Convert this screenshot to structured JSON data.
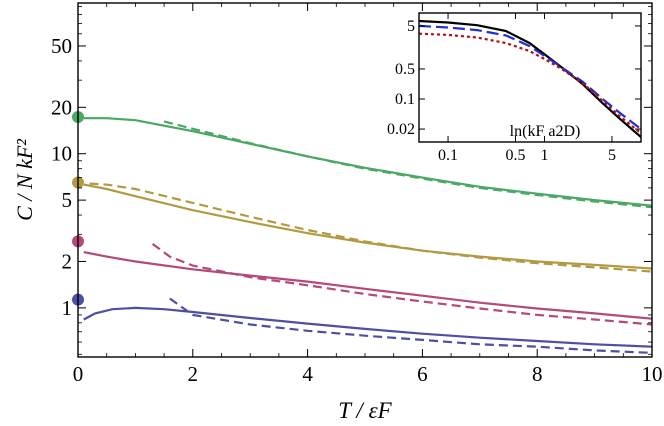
{
  "chart_data": [
    {
      "type": "line",
      "title": "",
      "xlabel": "T / εF",
      "ylabel": "C / N kF²",
      "xlim": [
        0,
        10
      ],
      "ylim": [
        0.48,
        95
      ],
      "yscale": "log",
      "xticks": [
        "0",
        "2",
        "4",
        "6",
        "8",
        "10"
      ],
      "yticks": [
        "1",
        "2",
        "5",
        "10",
        "20",
        "50"
      ],
      "series": [
        {
          "name": "green",
          "color": "#4aa865",
          "solid": {
            "x": [
              0.1,
              0.5,
              1.0,
              2.0,
              3.0,
              4.0,
              5.0,
              6.0,
              7.0,
              8.0,
              9.0,
              10.0
            ],
            "y": [
              17.0,
              17.0,
              16.5,
              14.0,
              11.6,
              9.6,
              8.1,
              7.0,
              6.1,
              5.5,
              5.0,
              4.6
            ]
          },
          "dashed": {
            "x": [
              1.5,
              2.0,
              3.0,
              4.0,
              5.0,
              6.0,
              7.0,
              8.0,
              9.0,
              10.0
            ],
            "y": [
              16.2,
              14.5,
              11.7,
              9.6,
              8.0,
              6.9,
              6.0,
              5.4,
              4.9,
              4.5
            ]
          },
          "marker": {
            "x": 0,
            "y": 17.3
          }
        },
        {
          "name": "gold",
          "color": "#b29a42",
          "solid": {
            "x": [
              0.1,
              0.5,
              1.0,
              2.0,
              3.0,
              4.0,
              5.0,
              6.0,
              7.0,
              8.0,
              9.0,
              10.0
            ],
            "y": [
              6.3,
              5.9,
              5.3,
              4.3,
              3.6,
              3.05,
              2.65,
              2.35,
              2.15,
              2.0,
              1.9,
              1.8
            ]
          },
          "dashed": {
            "x": [
              0.2,
              0.5,
              1.0,
              2.0,
              3.0,
              4.0,
              5.0,
              6.0,
              7.0,
              8.0,
              9.0,
              10.0
            ],
            "y": [
              6.4,
              6.3,
              5.9,
              4.8,
              3.9,
              3.2,
              2.7,
              2.35,
              2.12,
              1.95,
              1.83,
              1.72
            ]
          },
          "marker": {
            "x": 0,
            "y": 6.5
          }
        },
        {
          "name": "magenta",
          "color": "#b4497a",
          "solid": {
            "x": [
              0.1,
              0.5,
              1.0,
              2.0,
              3.0,
              4.0,
              5.0,
              6.0,
              7.0,
              8.0,
              9.0,
              10.0
            ],
            "y": [
              2.3,
              2.15,
              2.0,
              1.78,
              1.62,
              1.48,
              1.33,
              1.2,
              1.08,
              0.99,
              0.92,
              0.85
            ]
          },
          "dashed": {
            "x": [
              1.3,
              1.6,
              2.0,
              3.0,
              4.0,
              5.0,
              6.0,
              7.0,
              8.0,
              9.0,
              10.0
            ],
            "y": [
              2.6,
              2.15,
              1.88,
              1.58,
              1.4,
              1.23,
              1.1,
              0.99,
              0.9,
              0.84,
              0.78
            ]
          },
          "marker": {
            "x": 0,
            "y": 2.7
          }
        },
        {
          "name": "blue",
          "color": "#4c4fa2",
          "solid": {
            "x": [
              0.1,
              0.3,
              0.6,
              1.0,
              1.5,
              2.0,
              3.0,
              4.0,
              5.0,
              6.0,
              7.0,
              8.0,
              9.0,
              10.0
            ],
            "y": [
              0.84,
              0.92,
              0.98,
              1.0,
              0.98,
              0.94,
              0.86,
              0.79,
              0.73,
              0.68,
              0.64,
              0.61,
              0.58,
              0.56
            ]
          },
          "dashed": {
            "x": [
              1.6,
              2.0,
              3.0,
              4.0,
              5.0,
              6.0,
              7.0,
              8.0,
              9.0,
              10.0
            ],
            "y": [
              1.15,
              0.9,
              0.78,
              0.71,
              0.66,
              0.62,
              0.58,
              0.56,
              0.53,
              0.51
            ]
          },
          "marker": {
            "x": 0,
            "y": 1.13
          }
        }
      ]
    },
    {
      "type": "line",
      "title": "",
      "xlabel": "ln(kF a2D)",
      "ylabel": "",
      "xscale": "log",
      "yscale": "log",
      "xlim": [
        0.05,
        10
      ],
      "ylim": [
        0.01,
        10
      ],
      "xticks": [
        "0.1",
        "0.5",
        "1",
        "5"
      ],
      "yticks": [
        "5",
        "0.5",
        "0.1",
        "0.02"
      ],
      "series": [
        {
          "name": "solid black",
          "color": "#000000",
          "style": "solid",
          "x": [
            0.05,
            0.1,
            0.2,
            0.4,
            0.7,
            1.0,
            1.5,
            2.5,
            4.0,
            6.0,
            10.0
          ],
          "y": [
            6.5,
            6.0,
            5.2,
            3.8,
            2.0,
            1.1,
            0.55,
            0.22,
            0.08,
            0.035,
            0.013
          ]
        },
        {
          "name": "blue dashed",
          "color": "#1f2fd4",
          "style": "dashed",
          "x": [
            0.05,
            0.1,
            0.2,
            0.4,
            0.7,
            1.0,
            1.5,
            2.5,
            4.0,
            6.0,
            10.0
          ],
          "y": [
            5.0,
            4.6,
            4.0,
            3.0,
            1.7,
            1.0,
            0.55,
            0.25,
            0.1,
            0.048,
            0.02
          ]
        },
        {
          "name": "red dotted",
          "color": "#b01010",
          "style": "dotted",
          "x": [
            0.05,
            0.1,
            0.2,
            0.4,
            0.7,
            1.0,
            1.5,
            2.5,
            4.0,
            6.0,
            10.0
          ],
          "y": [
            3.3,
            3.1,
            2.7,
            2.0,
            1.3,
            0.85,
            0.5,
            0.23,
            0.09,
            0.04,
            0.016
          ]
        }
      ]
    }
  ]
}
